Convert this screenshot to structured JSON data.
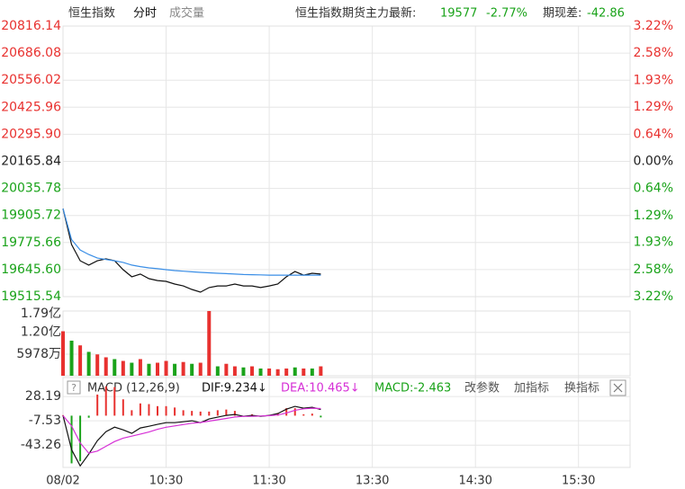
{
  "header": {
    "index_name": "恒生指数",
    "tab_active": "分时",
    "tab_other": "成交量",
    "futures_label": "恒生指数期货主力最新:",
    "futures_price": "19577",
    "futures_change": "-2.77%",
    "spread_label": "期现差:",
    "spread_value": "-42.86"
  },
  "chart_data": [
    {
      "type": "line",
      "x": [
        0,
        5,
        10,
        15,
        20,
        25,
        30,
        35,
        40,
        45,
        50,
        55,
        60,
        65,
        70,
        75,
        80,
        85,
        90,
        95,
        100,
        105,
        110,
        115,
        120,
        125,
        130,
        135,
        140,
        145,
        150
      ],
      "series": [
        {
          "color": "#111111",
          "values": [
            19939,
            19766,
            19688,
            19667,
            19688,
            19697,
            19688,
            19645,
            19611,
            19624,
            19602,
            19593,
            19589,
            19576,
            19567,
            19550,
            19537,
            19559,
            19567,
            19567,
            19576,
            19567,
            19567,
            19559,
            19567,
            19576,
            19611,
            19636,
            19619,
            19628,
            19624
          ]
        },
        {
          "color": "#3a8ee6",
          "values": [
            19939,
            19790,
            19740,
            19718,
            19701,
            19694,
            19688,
            19680,
            19667,
            19660,
            19654,
            19650,
            19645,
            19641,
            19638,
            19635,
            19632,
            19630,
            19628,
            19626,
            19624,
            19622,
            19621,
            19620,
            19619,
            19619,
            19619,
            19619,
            19619,
            19619,
            19619
          ]
        }
      ],
      "xlim": [
        0,
        330
      ],
      "ylim": [
        19515.54,
        20816.14
      ],
      "yticks": [
        20816.14,
        20686.08,
        20556.02,
        20425.96,
        {
          "value": 20295.9,
          "label": "20295.90"
        },
        20165.84,
        20035.78,
        19905.72,
        19775.66,
        {
          "value": 19645.6,
          "label": "19645.60"
        },
        19515.54
      ],
      "y2lim": [
        -3.22,
        3.22
      ],
      "y2ticks": [
        {
          "value": 3.22,
          "label": "3.22%"
        },
        {
          "value": 2.58,
          "label": "2.58%"
        },
        {
          "value": 1.93,
          "label": "1.93%"
        },
        {
          "value": 1.29,
          "label": "1.29%"
        },
        {
          "value": 0.64,
          "label": "0.64%"
        },
        {
          "value": 0,
          "label": "0.00%"
        },
        {
          "value": -0.64,
          "label": "0.64%"
        },
        {
          "value": -1.29,
          "label": "1.29%"
        },
        {
          "value": -1.93,
          "label": "1.93%"
        },
        {
          "value": -2.58,
          "label": "2.58%"
        },
        {
          "value": -3.22,
          "label": "3.22%"
        }
      ],
      "up_color": "#e8312f",
      "down_color": "#1aa31a",
      "flat_color": "#222222",
      "grid": true
    },
    {
      "type": "bar",
      "x": [
        0,
        5,
        10,
        15,
        20,
        25,
        30,
        35,
        40,
        45,
        50,
        55,
        60,
        65,
        70,
        75,
        80,
        85,
        90,
        95,
        100,
        105,
        110,
        115,
        120,
        125,
        130,
        135,
        140,
        145,
        150
      ],
      "values": [
        123000000,
        97000000,
        84000000,
        66000000,
        59000000,
        51000000,
        46000000,
        41000000,
        36000000,
        46000000,
        33000000,
        36000000,
        41000000,
        33000000,
        38000000,
        33000000,
        36000000,
        179000000,
        26000000,
        33000000,
        26000000,
        23000000,
        26000000,
        20000000,
        20000000,
        18000000,
        20000000,
        23000000,
        20000000,
        20000000,
        26000000
      ],
      "bar_colors": [
        "#e8312f",
        "#1aa31a",
        "#e8312f",
        "#1aa31a",
        "#e8312f",
        "#e8312f",
        "#1aa31a",
        "#e8312f",
        "#1aa31a",
        "#e8312f",
        "#1aa31a",
        "#e8312f",
        "#e8312f",
        "#1aa31a",
        "#e8312f",
        "#1aa31a",
        "#e8312f",
        "#e8312f",
        "#1aa31a",
        "#e8312f",
        "#e8312f",
        "#1aa31a",
        "#e8312f",
        "#1aa31a",
        "#e8312f",
        "#e8312f",
        "#e8312f",
        "#1aa31a",
        "#e8312f",
        "#1aa31a",
        "#e8312f"
      ],
      "xlim": [
        0,
        330
      ],
      "ylim": [
        0,
        179000000
      ],
      "yticks": [
        {
          "value": 179000000,
          "label": "1.79亿"
        },
        {
          "value": 120000000,
          "label": "1.20亿"
        },
        {
          "value": 59780000,
          "label": "5978万"
        }
      ]
    },
    {
      "type": "macd",
      "title": "MACD (12,26,9)",
      "dif_label": "DIF:9.234↓",
      "dea_label": "DEA:10.465↓",
      "macd_label": "MACD:-2.463",
      "buttons": [
        "改参数",
        "加指标",
        "换指标"
      ],
      "x": [
        0,
        5,
        10,
        15,
        20,
        25,
        30,
        35,
        40,
        45,
        50,
        55,
        60,
        65,
        70,
        75,
        80,
        85,
        90,
        95,
        100,
        105,
        110,
        115,
        120,
        125,
        130,
        135,
        140,
        145,
        150
      ],
      "series": [
        {
          "color": "#111111",
          "values": [
            0.4,
            -49.9,
            -73.7,
            -56.5,
            -36.6,
            -23.4,
            -16.8,
            -20.8,
            -26,
            -18.1,
            -15.5,
            -12.8,
            -10.2,
            -10.2,
            -8.9,
            -7.5,
            -10.2,
            -4.9,
            -2.2,
            0.4,
            1.7,
            -0.9,
            0.4,
            -0.9,
            0.4,
            3.1,
            9.6,
            13.6,
            11,
            12.3,
            9.2
          ]
        },
        {
          "color": "#d62fd6",
          "values": [
            0,
            -15,
            -40,
            -55,
            -52,
            -45,
            -38,
            -33,
            -30,
            -27,
            -24,
            -20,
            -17,
            -15,
            -13,
            -11,
            -10,
            -8,
            -6,
            -4,
            -2,
            -1,
            -1,
            -0.5,
            0,
            1,
            4,
            8,
            10,
            11,
            10.5
          ]
        }
      ],
      "histogram": [
        0.8,
        -70,
        -67,
        -3,
        31,
        43,
        42,
        24,
        8,
        18,
        17,
        14,
        14,
        12,
        8,
        7,
        6,
        6,
        8,
        9,
        7,
        0,
        2,
        -1,
        1,
        4,
        11,
        11,
        2,
        3,
        -2.5
      ],
      "up_color": "#e8312f",
      "down_color": "#1aa31a",
      "xlim": [
        0,
        330
      ],
      "xticks": [
        {
          "value": 0,
          "label": "08/02"
        },
        {
          "value": 60,
          "label": "10:30"
        },
        {
          "value": 120,
          "label": "11:30"
        },
        {
          "value": 180,
          "label": "13:30"
        },
        {
          "value": 240,
          "label": "14:30"
        },
        {
          "value": 300,
          "label": "15:30"
        }
      ],
      "ylim": [
        -76,
        56
      ],
      "yticks": [
        28.19,
        -7.53,
        -43.26
      ]
    }
  ]
}
